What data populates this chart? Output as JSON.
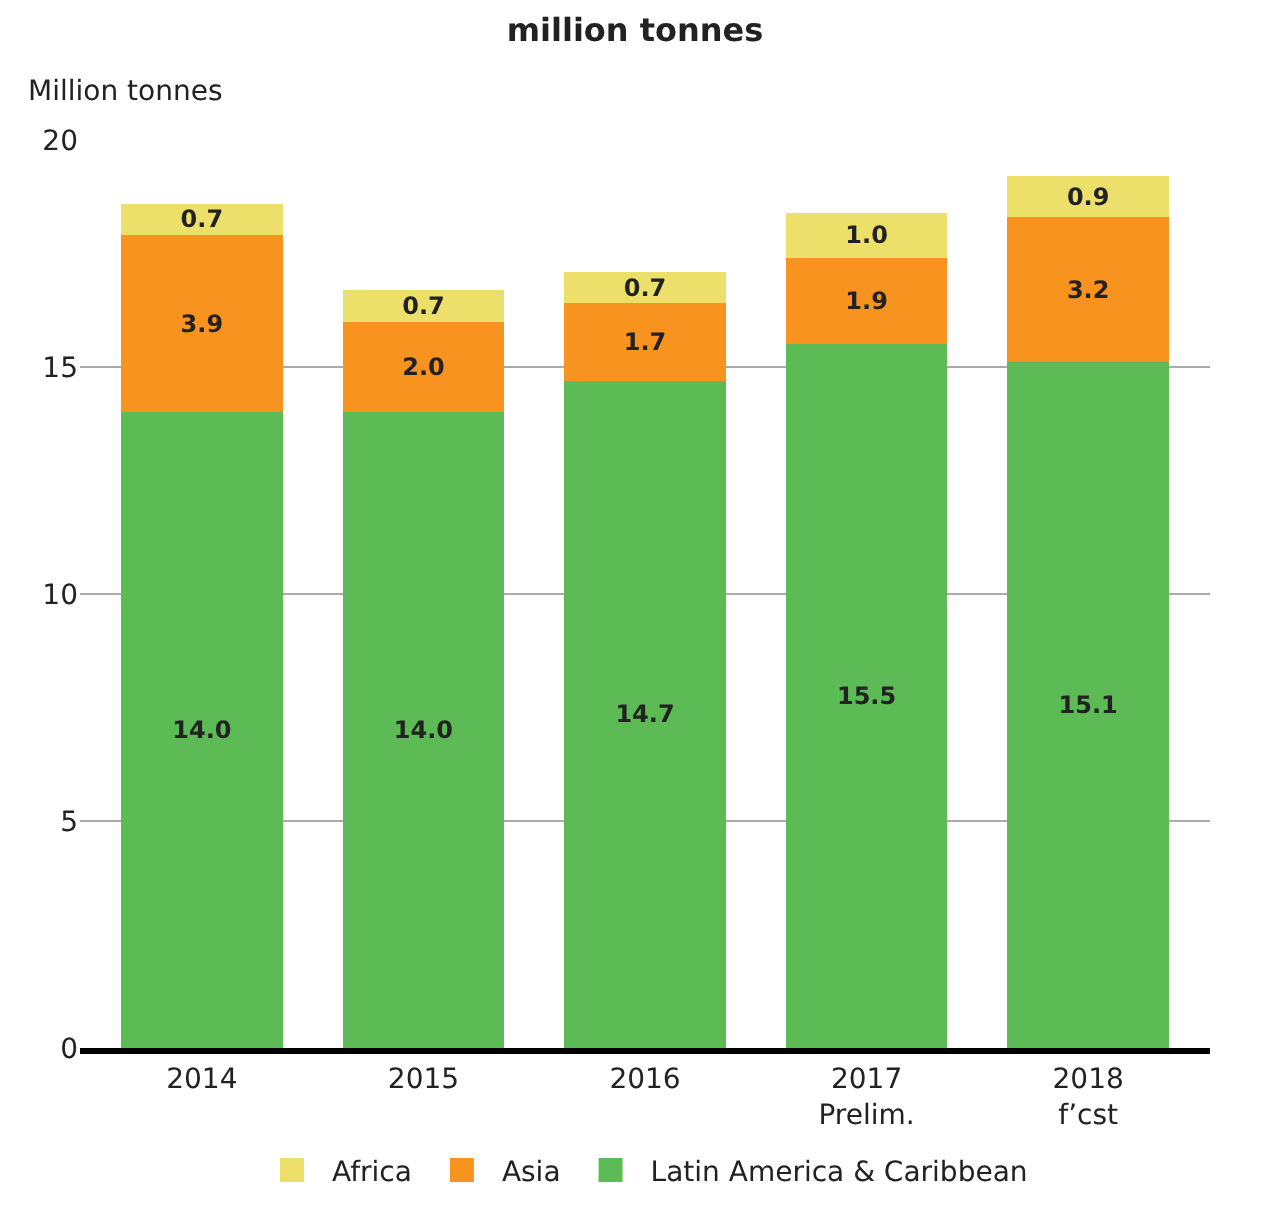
{
  "chart_data": {
    "type": "bar",
    "title": "million tonnes",
    "ylabel": "Million tonnes",
    "categories": [
      "2014",
      "2015",
      "2016",
      "2017\nPrelim.",
      "2018\nf’cst"
    ],
    "stacked": true,
    "grid": "y",
    "legend": "bottom",
    "ylim": [
      0,
      20
    ],
    "yticks": [
      0,
      5,
      10,
      15,
      20
    ],
    "series": [
      {
        "name": "Latin America & Caribbean",
        "color": "#5dbb55",
        "values": [
          14.0,
          14.0,
          14.7,
          15.5,
          15.1
        ],
        "value_labels": [
          "14.0",
          "14.0",
          "14.7",
          "15.5",
          "15.1"
        ]
      },
      {
        "name": "Asia",
        "color": "#f7931e",
        "values": [
          3.9,
          2.0,
          1.7,
          1.9,
          3.2
        ],
        "value_labels": [
          "3.9",
          "2.0",
          "1.7",
          "1.9",
          "3.2"
        ]
      },
      {
        "name": "Africa",
        "color": "#ece06a",
        "values": [
          0.7,
          0.7,
          0.7,
          1.0,
          0.9
        ],
        "value_labels": [
          "0.7",
          "0.7",
          "0.7",
          "1.0",
          "0.9"
        ]
      }
    ]
  }
}
